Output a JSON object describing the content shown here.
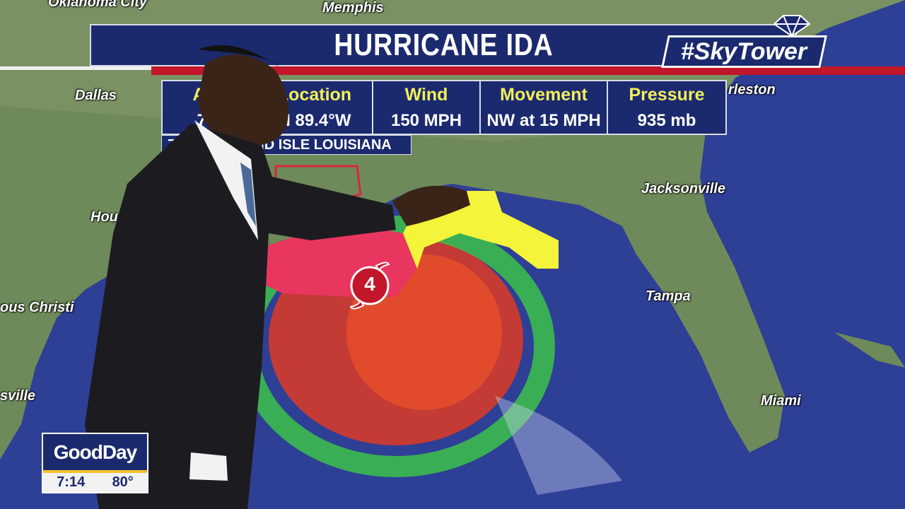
{
  "graphic": {
    "title": "HURRICANE IDA",
    "brand": "#SkyTower",
    "stats": [
      {
        "label": "Adv",
        "value": "7:0"
      },
      {
        "label": "Location",
        "value": "N  89.4°W"
      },
      {
        "label": "Wind",
        "value": "150 MPH"
      },
      {
        "label": "Movement",
        "value": "NW at 15 MPH"
      },
      {
        "label": "Pressure",
        "value": "935 mb"
      }
    ],
    "location_note": "7                    ND ISLE LOUISIANA",
    "category": "4"
  },
  "map": {
    "cities": [
      "Oklahoma City",
      "Memphis",
      "Dallas",
      "Hou",
      "ous Christi",
      "sville",
      "rleston",
      "Jacksonville",
      "Tampa",
      "Miami"
    ]
  },
  "bug": {
    "show": "GoodDay",
    "time": "7:14",
    "temp": "80°"
  },
  "colors": {
    "navy": "#1b2a6e",
    "accent_red": "#c2162a",
    "label_yellow": "#f2ef5a",
    "warning_pink": "#e8365f",
    "watch_yellow": "#f4f43a"
  }
}
